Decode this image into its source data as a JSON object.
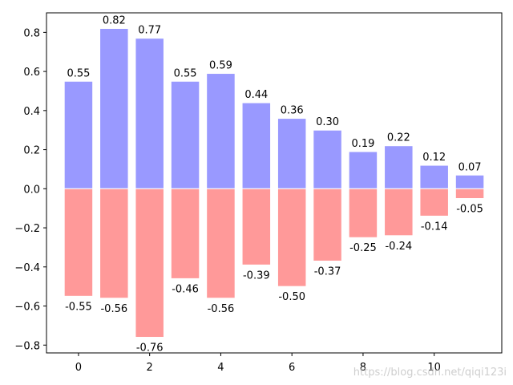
{
  "chart_data": {
    "type": "bar",
    "x": [
      0,
      1,
      2,
      3,
      4,
      5,
      6,
      7,
      8,
      9,
      10,
      11
    ],
    "series": [
      {
        "values": [
          0.55,
          0.82,
          0.77,
          0.55,
          0.59,
          0.44,
          0.36,
          0.3,
          0.19,
          0.22,
          0.12,
          0.07
        ],
        "labels": [
          "0.55",
          "0.82",
          "0.77",
          "0.55",
          "0.59",
          "0.44",
          "0.36",
          "0.30",
          "0.19",
          "0.22",
          "0.12",
          "0.07"
        ],
        "color": "#9999ff"
      },
      {
        "values": [
          -0.55,
          -0.56,
          -0.76,
          -0.46,
          -0.56,
          -0.39,
          -0.5,
          -0.37,
          -0.25,
          -0.24,
          -0.14,
          -0.05
        ],
        "labels": [
          "-0.55",
          "-0.56",
          "-0.76",
          "-0.46",
          "-0.56",
          "-0.39",
          "-0.50",
          "-0.37",
          "-0.25",
          "-0.24",
          "-0.14",
          "-0.05"
        ],
        "color": "#ff9999"
      }
    ],
    "xlim": [
      -0.9,
      11.9
    ],
    "ylim": [
      -0.84,
      0.9
    ],
    "xticks": [
      0,
      2,
      4,
      6,
      8,
      10
    ],
    "xtick_labels": [
      "0",
      "2",
      "4",
      "6",
      "8",
      "10"
    ],
    "yticks": [
      0.8,
      0.6,
      0.4,
      0.2,
      0.0,
      -0.2,
      -0.4,
      -0.6,
      -0.8
    ],
    "ytick_labels": [
      "0.8",
      "0.6",
      "0.4",
      "0.2",
      "0.0",
      "−0.2",
      "−0.4",
      "−0.6",
      "−0.8"
    ],
    "grid": false,
    "title": "",
    "xlabel": "",
    "ylabel": ""
  },
  "watermark": "https://blog.csdn.net/qiqi123i"
}
